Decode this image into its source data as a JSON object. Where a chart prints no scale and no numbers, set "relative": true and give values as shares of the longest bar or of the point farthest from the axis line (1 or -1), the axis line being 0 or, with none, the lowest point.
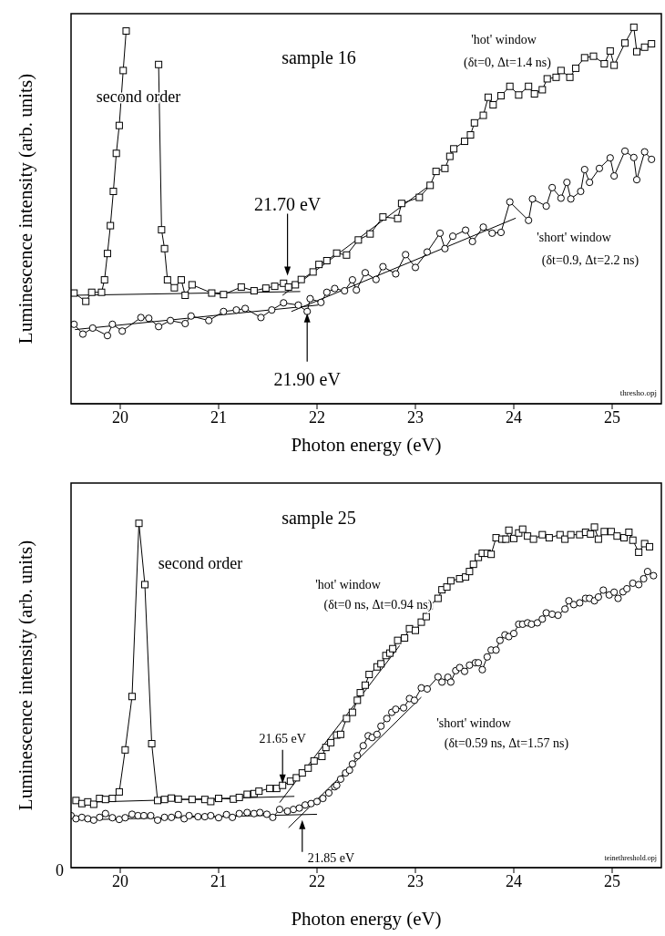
{
  "chart_data": [
    {
      "type": "line",
      "relative": true,
      "xlabel": "Photon energy (eV)",
      "ylabel": "Luminescence intensity (arb. units)",
      "xlim": [
        19.5,
        25.5
      ],
      "xticks": [
        20,
        21,
        22,
        23,
        24,
        25
      ],
      "tick_labels": "x",
      "color": "#000000",
      "annotations": [
        "sample 16",
        "second order",
        "'hot' window",
        "(δt=0, Δt=1.4 ns)",
        "'short' window",
        "(δt=0.9, Δt=2.2 ns)",
        {
          "text": "21.70 eV",
          "x": 21.7,
          "y": 0.34
        },
        {
          "text": "21.90 eV",
          "x": 21.9,
          "y": 0.24
        },
        "thresho.opj"
      ],
      "series": [
        {
          "type": "line",
          "marker": "square",
          "color": "#000000",
          "x": [
            19.53,
            19.65,
            19.71,
            19.81,
            19.84,
            19.87,
            19.9,
            19.93,
            19.96,
            19.99,
            20.03,
            20.06,
            20.15,
            20.25,
            20.39,
            20.42,
            20.45,
            20.48,
            20.55,
            20.62,
            20.66,
            20.73,
            20.93,
            21.05,
            21.23,
            21.36,
            21.48,
            21.57,
            21.66,
            21.71,
            21.78,
            21.84,
            21.96,
            22.02,
            22.1,
            22.2,
            22.3,
            22.42,
            22.54,
            22.67,
            22.82,
            22.86,
            23.04,
            23.15,
            23.21,
            23.3,
            23.35,
            23.39,
            23.5,
            23.56,
            23.6,
            23.69,
            23.74,
            23.79,
            23.87,
            23.96,
            24.05,
            24.15,
            24.21,
            24.29,
            24.34,
            24.43,
            24.48,
            24.57,
            24.63,
            24.72,
            24.81,
            24.92,
            24.98,
            25.02,
            25.13,
            25.22,
            25.25,
            25.33,
            25.4
          ],
          "values": [
            0.294,
            0.272,
            0.296,
            0.296,
            0.329,
            0.399,
            0.473,
            0.564,
            0.665,
            0.739,
            0.885,
            0.99,
            null,
            null,
            0.901,
            0.462,
            0.412,
            0.329,
            0.308,
            0.329,
            0.288,
            0.316,
            0.294,
            0.29,
            0.31,
            0.3,
            0.307,
            0.312,
            0.32,
            0.31,
            0.316,
            0.33,
            0.35,
            0.37,
            0.38,
            0.4,
            0.395,
            0.435,
            0.451,
            0.496,
            0.492,
            0.532,
            0.548,
            0.58,
            0.617,
            0.625,
            0.657,
            0.677,
            0.697,
            0.714,
            0.746,
            0.766,
            0.814,
            0.794,
            0.818,
            0.843,
            0.82,
            0.843,
            0.823,
            0.834,
            0.863,
            0.867,
            0.885,
            0.867,
            0.891,
            0.919,
            0.923,
            0.903,
            0.937,
            0.899,
            0.958,
            1,
            0.935,
            0.947,
            0.956
          ]
        },
        {
          "type": "line",
          "marker": "circle",
          "color": "#000000",
          "x": [
            19.53,
            19.62,
            19.72,
            19.87,
            19.92,
            20.02,
            20.21,
            20.29,
            20.39,
            20.51,
            20.66,
            20.72,
            20.9,
            21.05,
            21.18,
            21.27,
            21.43,
            21.54,
            21.66,
            21.81,
            21.9,
            21.93,
            22.04,
            22.1,
            22.18,
            22.28,
            22.36,
            22.4,
            22.49,
            22.6,
            22.67,
            22.8,
            22.9,
            23.0,
            23.12,
            23.25,
            23.3,
            23.38,
            23.51,
            23.58,
            23.69,
            23.78,
            23.87,
            23.96,
            24.15,
            24.19,
            24.33,
            24.39,
            24.48,
            24.54,
            24.58,
            24.68,
            24.72,
            24.77,
            24.87,
            24.98,
            25.02,
            25.13,
            25.22,
            25.25,
            25.33,
            25.4
          ],
          "values": [
            0.211,
            0.185,
            0.201,
            0.181,
            0.211,
            0.193,
            0.229,
            0.227,
            0.205,
            0.221,
            0.213,
            0.233,
            0.221,
            0.245,
            0.249,
            0.253,
            0.229,
            0.249,
            0.268,
            0.262,
            0.245,
            0.279,
            0.269,
            0.296,
            0.306,
            0.3,
            0.329,
            0.302,
            0.348,
            0.33,
            0.364,
            0.345,
            0.396,
            0.362,
            0.403,
            0.453,
            0.412,
            0.445,
            0.461,
            0.431,
            0.469,
            0.453,
            0.455,
            0.536,
            0.487,
            0.544,
            0.525,
            0.574,
            0.546,
            0.588,
            0.544,
            0.564,
            0.622,
            0.588,
            0.625,
            0.653,
            0.605,
            0.671,
            0.654,
            0.595,
            0.669,
            0.649
          ]
        },
        {
          "type": "line",
          "marker": "none",
          "color": "#000000",
          "x": [
            19.51,
            21.83
          ],
          "values": [
            0.288,
            0.298
          ]
        },
        {
          "type": "line",
          "marker": "none",
          "color": "#000000",
          "x": [
            21.65,
            23.15
          ],
          "values": [
            0.288,
            0.581
          ]
        },
        {
          "type": "line",
          "marker": "none",
          "color": "#000000",
          "x": [
            19.54,
            22.01
          ],
          "values": [
            0.197,
            0.262
          ]
        },
        {
          "type": "line",
          "marker": "none",
          "color": "#000000",
          "x": [
            21.74,
            24.02
          ],
          "values": [
            0.245,
            0.493
          ]
        }
      ]
    },
    {
      "type": "line",
      "relative": true,
      "xlabel": "Photon energy (eV)",
      "ylabel": "Luminescence intensity (arb. units)",
      "xlim": [
        19.5,
        25.5
      ],
      "xticks": [
        20,
        21,
        22,
        23,
        24,
        25
      ],
      "tick_labels": "x",
      "color": "#000000",
      "annotations": [
        "sample 25",
        "second order",
        "'hot' window",
        "(δt=0 ns, Δt=0.94 ns)",
        "'short' window",
        "(δt=0.59 ns, Δt=1.57 ns)",
        {
          "text": "21.65 eV",
          "x": 21.65,
          "y": 0.244
        },
        {
          "text": "21.85 eV",
          "x": 21.85,
          "y": 0.138
        },
        "teinethreshold.opj",
        "0"
      ],
      "series": [
        {
          "type": "line",
          "marker": "square",
          "color": "#000000",
          "x": [
            19.55,
            19.61,
            19.67,
            19.73,
            19.79,
            19.85,
            19.92,
            19.99,
            20.05,
            20.12,
            20.19,
            20.25,
            20.32,
            20.38,
            20.45,
            20.52,
            20.59,
            20.73,
            20.86,
            20.92,
            21.0,
            21.15,
            21.21,
            21.29,
            21.36,
            21.41,
            21.52,
            21.59,
            21.65,
            21.73,
            21.79,
            21.85,
            21.91,
            21.97,
            22.05,
            22.09,
            22.14,
            22.2,
            22.24,
            22.3,
            22.36,
            22.41,
            22.44,
            22.49,
            22.53,
            22.61,
            22.65,
            22.7,
            22.74,
            22.77,
            22.82,
            22.89,
            22.94,
            23.0,
            23.06,
            23.11,
            23.14,
            23.23,
            23.27,
            23.32,
            23.36,
            23.45,
            23.51,
            23.55,
            23.59,
            23.64,
            23.68,
            23.73,
            23.77,
            23.82,
            23.88,
            23.92,
            23.95,
            24.0,
            24.05,
            24.09,
            24.14,
            24.2,
            24.29,
            24.36,
            24.47,
            24.52,
            24.58,
            24.67,
            24.73,
            24.78,
            24.82,
            24.86,
            24.92,
            24.99,
            25.05,
            25.12,
            25.17,
            25.21,
            25.27,
            25.33,
            25.38
          ],
          "values": [
            0.195,
            0.186,
            0.191,
            0.184,
            0.201,
            0.198,
            0.201,
            0.22,
            0.342,
            0.497,
            1,
            0.822,
            0.36,
            0.195,
            0.198,
            0.202,
            0.199,
            0.198,
            0.198,
            0.192,
            0.201,
            0.199,
            0.204,
            0.213,
            0.215,
            0.222,
            0.23,
            0.23,
            0.239,
            0.251,
            0.261,
            0.275,
            0.289,
            0.31,
            0.323,
            0.349,
            0.363,
            0.385,
            0.387,
            0.433,
            0.451,
            0.486,
            0.508,
            0.53,
            0.561,
            0.583,
            0.592,
            0.616,
            0.623,
            0.636,
            0.66,
            0.667,
            0.694,
            0.689,
            0.713,
            0.729,
            0.76,
            0.782,
            0.807,
            0.815,
            0.833,
            0.839,
            0.844,
            0.86,
            0.881,
            0.901,
            0.913,
            0.913,
            0.91,
            0.958,
            0.954,
            0.954,
            0.98,
            0.956,
            0.972,
            0.983,
            0.963,
            0.954,
            0.967,
            0.958,
            0.967,
            0.954,
            0.967,
            0.967,
            0.974,
            0.969,
            0.989,
            0.954,
            0.976,
            0.976,
            0.963,
            0.958,
            0.974,
            0.951,
            0.916,
            0.941,
            0.932
          ]
        },
        {
          "type": "line",
          "marker": "circle",
          "color": "#000000",
          "x": [
            19.5,
            19.55,
            19.61,
            19.67,
            19.73,
            19.79,
            19.85,
            19.92,
            19.99,
            20.05,
            20.12,
            20.18,
            20.24,
            20.31,
            20.38,
            20.45,
            20.52,
            20.59,
            20.65,
            20.7,
            20.79,
            20.86,
            20.92,
            21.0,
            21.08,
            21.14,
            21.21,
            21.29,
            21.36,
            21.42,
            21.49,
            21.55,
            21.62,
            21.7,
            21.76,
            21.82,
            21.88,
            21.94,
            22.0,
            22.06,
            22.12,
            22.18,
            22.2,
            22.24,
            22.29,
            22.33,
            22.36,
            22.41,
            22.47,
            22.52,
            22.56,
            22.61,
            22.65,
            22.71,
            22.76,
            22.8,
            22.88,
            22.94,
            22.99,
            23.06,
            23.12,
            23.23,
            23.27,
            23.33,
            23.36,
            23.41,
            23.45,
            23.5,
            23.55,
            23.61,
            23.64,
            23.68,
            23.73,
            23.77,
            23.82,
            23.86,
            23.91,
            23.95,
            24.0,
            24.05,
            24.09,
            24.14,
            24.18,
            24.24,
            24.29,
            24.33,
            24.39,
            24.45,
            24.52,
            24.56,
            24.61,
            24.67,
            24.73,
            24.77,
            24.82,
            24.86,
            24.91,
            24.97,
            25.02,
            25.06,
            25.11,
            25.15,
            25.21,
            25.27,
            25.32,
            25.36,
            25.42
          ],
          "values": [
            0.151,
            0.142,
            0.146,
            0.142,
            0.138,
            0.146,
            0.157,
            0.145,
            0.14,
            0.145,
            0.155,
            0.151,
            0.151,
            0.151,
            0.138,
            0.146,
            0.146,
            0.154,
            0.142,
            0.151,
            0.148,
            0.148,
            0.151,
            0.145,
            0.154,
            0.146,
            0.157,
            0.16,
            0.157,
            0.16,
            0.155,
            0.146,
            0.169,
            0.164,
            0.169,
            0.173,
            0.182,
            0.186,
            0.192,
            0.201,
            0.217,
            0.235,
            0.239,
            0.257,
            0.275,
            0.283,
            0.301,
            0.325,
            0.354,
            0.383,
            0.378,
            0.387,
            0.411,
            0.433,
            0.451,
            0.46,
            0.464,
            0.491,
            0.486,
            0.522,
            0.519,
            0.554,
            0.539,
            0.553,
            0.539,
            0.572,
            0.581,
            0.57,
            0.588,
            0.595,
            0.595,
            0.575,
            0.612,
            0.632,
            0.632,
            0.66,
            0.676,
            0.671,
            0.68,
            0.707,
            0.707,
            0.711,
            0.707,
            0.711,
            0.722,
            0.74,
            0.736,
            0.733,
            0.751,
            0.775,
            0.764,
            0.769,
            0.782,
            0.782,
            0.775,
            0.786,
            0.806,
            0.792,
            0.8,
            0.782,
            0.801,
            0.81,
            0.826,
            0.822,
            0.839,
            0.86,
            0.848
          ]
        },
        {
          "type": "line",
          "marker": "none",
          "color": "#000000",
          "x": [
            19.53,
            21.77
          ],
          "values": [
            0.189,
            0.207
          ]
        },
        {
          "type": "line",
          "marker": "none",
          "color": "#000000",
          "x": [
            21.62,
            22.84
          ],
          "values": [
            0.189,
            0.645
          ]
        },
        {
          "type": "line",
          "marker": "none",
          "color": "#000000",
          "x": [
            19.79,
            22.0
          ],
          "values": [
            0.14,
            0.155
          ]
        },
        {
          "type": "line",
          "marker": "none",
          "color": "#000000",
          "x": [
            21.71,
            23.06
          ],
          "values": [
            0.116,
            0.495
          ]
        }
      ]
    }
  ]
}
